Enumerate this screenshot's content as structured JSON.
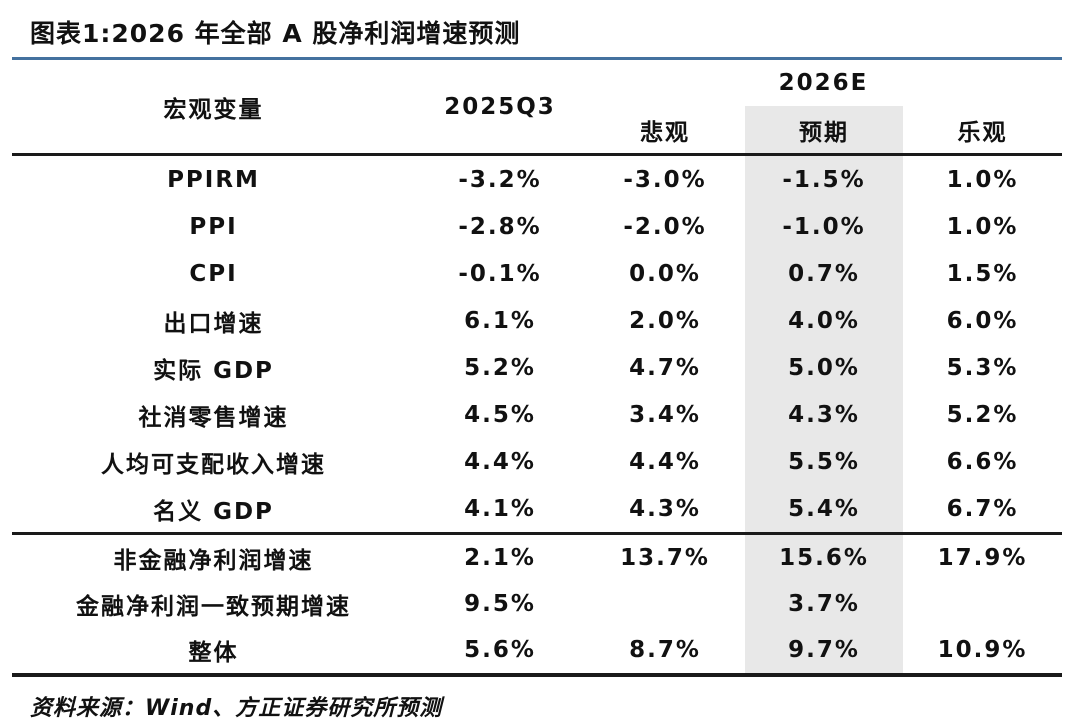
{
  "colors": {
    "accent_rule": "#44719f",
    "highlight_column": "#e8e8e8",
    "table_line": "#1a1a1a",
    "text": "#111111",
    "background": "#ffffff"
  },
  "chart_data": {
    "type": "table",
    "title": "图表1:2026 年全部 A 股净利润增速预测",
    "column_headers": {
      "variable": "宏观变量",
      "period": "2025Q3",
      "group": "2026E",
      "scenarios": [
        "悲观",
        "预期",
        "乐观"
      ],
      "highlighted_scenario": "预期"
    },
    "macro_rows": [
      [
        "PPIRM",
        "-3.2%",
        "-3.0%",
        "-1.5%",
        "1.0%"
      ],
      [
        "PPI",
        "-2.8%",
        "-2.0%",
        "-1.0%",
        "1.0%"
      ],
      [
        "CPI",
        "-0.1%",
        "0.0%",
        "0.7%",
        "1.5%"
      ],
      [
        "出口增速",
        "6.1%",
        "2.0%",
        "4.0%",
        "6.0%"
      ],
      [
        "实际 GDP",
        "5.2%",
        "4.7%",
        "5.0%",
        "5.3%"
      ],
      [
        "社消零售增速",
        "4.5%",
        "3.4%",
        "4.3%",
        "5.2%"
      ],
      [
        "人均可支配收入增速",
        "4.4%",
        "4.4%",
        "5.5%",
        "6.6%"
      ],
      [
        "名义 GDP",
        "4.1%",
        "4.3%",
        "5.4%",
        "6.7%"
      ]
    ],
    "summary_rows": [
      [
        "非金融净利润增速",
        "2.1%",
        "13.7%",
        "15.6%",
        "17.9%"
      ],
      [
        "金融净利润一致预期增速",
        "9.5%",
        "",
        "3.7%",
        ""
      ],
      [
        "整体",
        "5.6%",
        "8.7%",
        "9.7%",
        "10.9%"
      ]
    ],
    "source": "资料来源：Wind、方正证券研究所预测"
  }
}
